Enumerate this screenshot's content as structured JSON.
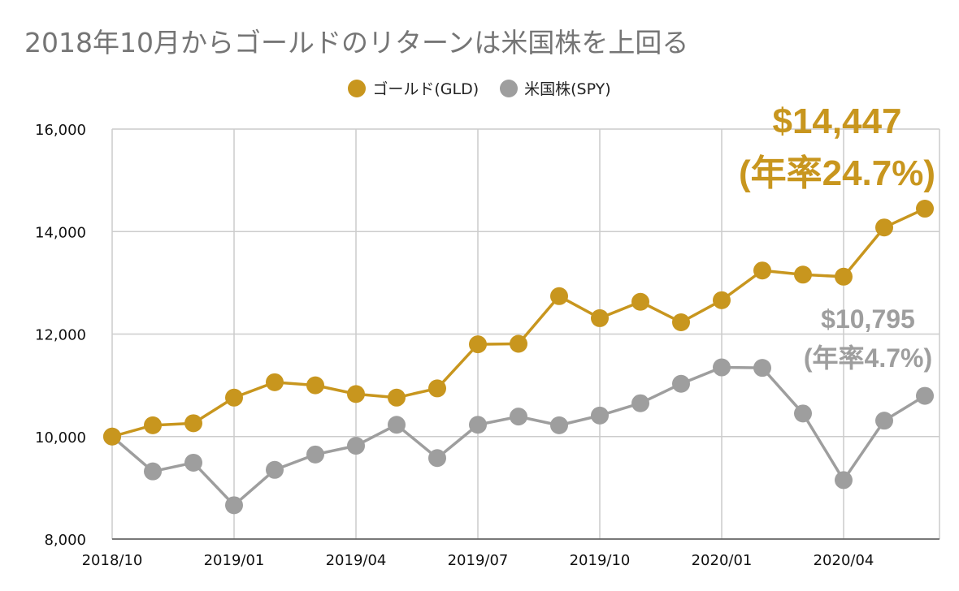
{
  "title": "2018年10月からゴールドのリターンは米国株を上回る",
  "legend": {
    "gold": "ゴールド(GLD)",
    "spy": "米国株(SPY)"
  },
  "colors": {
    "gold": "#C8961E",
    "spy": "#9E9E9E",
    "grid": "#CCCCCC"
  },
  "annotations": {
    "gold_value": "$14,447",
    "gold_rate": "(年率24.7%)",
    "spy_value": "$10,795",
    "spy_rate": "(年率4.7%)"
  },
  "chart_data": {
    "type": "line",
    "x": [
      "2018/10",
      "2018/11",
      "2018/12",
      "2019/01",
      "2019/02",
      "2019/03",
      "2019/04",
      "2019/05",
      "2019/06",
      "2019/07",
      "2019/08",
      "2019/09",
      "2019/10",
      "2019/11",
      "2019/12",
      "2020/01",
      "2020/02",
      "2020/03",
      "2020/04",
      "2020/05",
      "2020/06"
    ],
    "x_tick_labels": [
      "2018/10",
      "2019/01",
      "2019/04",
      "2019/07",
      "2019/10",
      "2020/01",
      "2020/04"
    ],
    "series": [
      {
        "name": "ゴールド(GLD)",
        "values": [
          10000,
          10220,
          10260,
          10760,
          11060,
          11000,
          10830,
          10760,
          10940,
          11800,
          11810,
          12740,
          12310,
          12630,
          12230,
          12660,
          13240,
          13160,
          13120,
          14080,
          14447
        ]
      },
      {
        "name": "米国株(SPY)",
        "values": [
          10000,
          9320,
          9490,
          8660,
          9350,
          9650,
          9820,
          10230,
          9580,
          10230,
          10390,
          10220,
          10410,
          10650,
          11030,
          11350,
          11340,
          10450,
          9150,
          10310,
          10795
        ]
      }
    ],
    "ylim": [
      8000,
      16000
    ],
    "y_ticks": [
      "8,000",
      "10,000",
      "12,000",
      "14,000",
      "16,000"
    ],
    "grid": true,
    "legend_position": "top-center"
  }
}
